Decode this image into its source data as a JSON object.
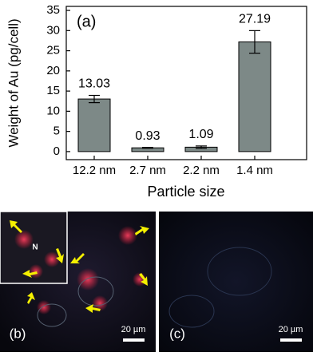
{
  "chart_data": {
    "type": "bar",
    "panel_label": "(a)",
    "x_label": "Particle size",
    "y_label": "Weight of Au (pg/cell)",
    "categories": [
      "12.2 nm",
      "2.7 nm",
      "2.2 nm",
      "1.4 nm"
    ],
    "values": [
      13.03,
      0.93,
      1.09,
      27.19
    ],
    "errors": [
      0.9,
      0.1,
      0.3,
      2.8
    ],
    "color": "#7d8987",
    "ylim": [
      -2,
      36
    ],
    "yticks": [
      0,
      5,
      10,
      15,
      20,
      25,
      30,
      35
    ]
  },
  "panels": [
    {
      "label": "(b)",
      "scale": "20 µm",
      "inset_label": "N"
    },
    {
      "label": "(c)",
      "scale": "20 µm"
    }
  ]
}
